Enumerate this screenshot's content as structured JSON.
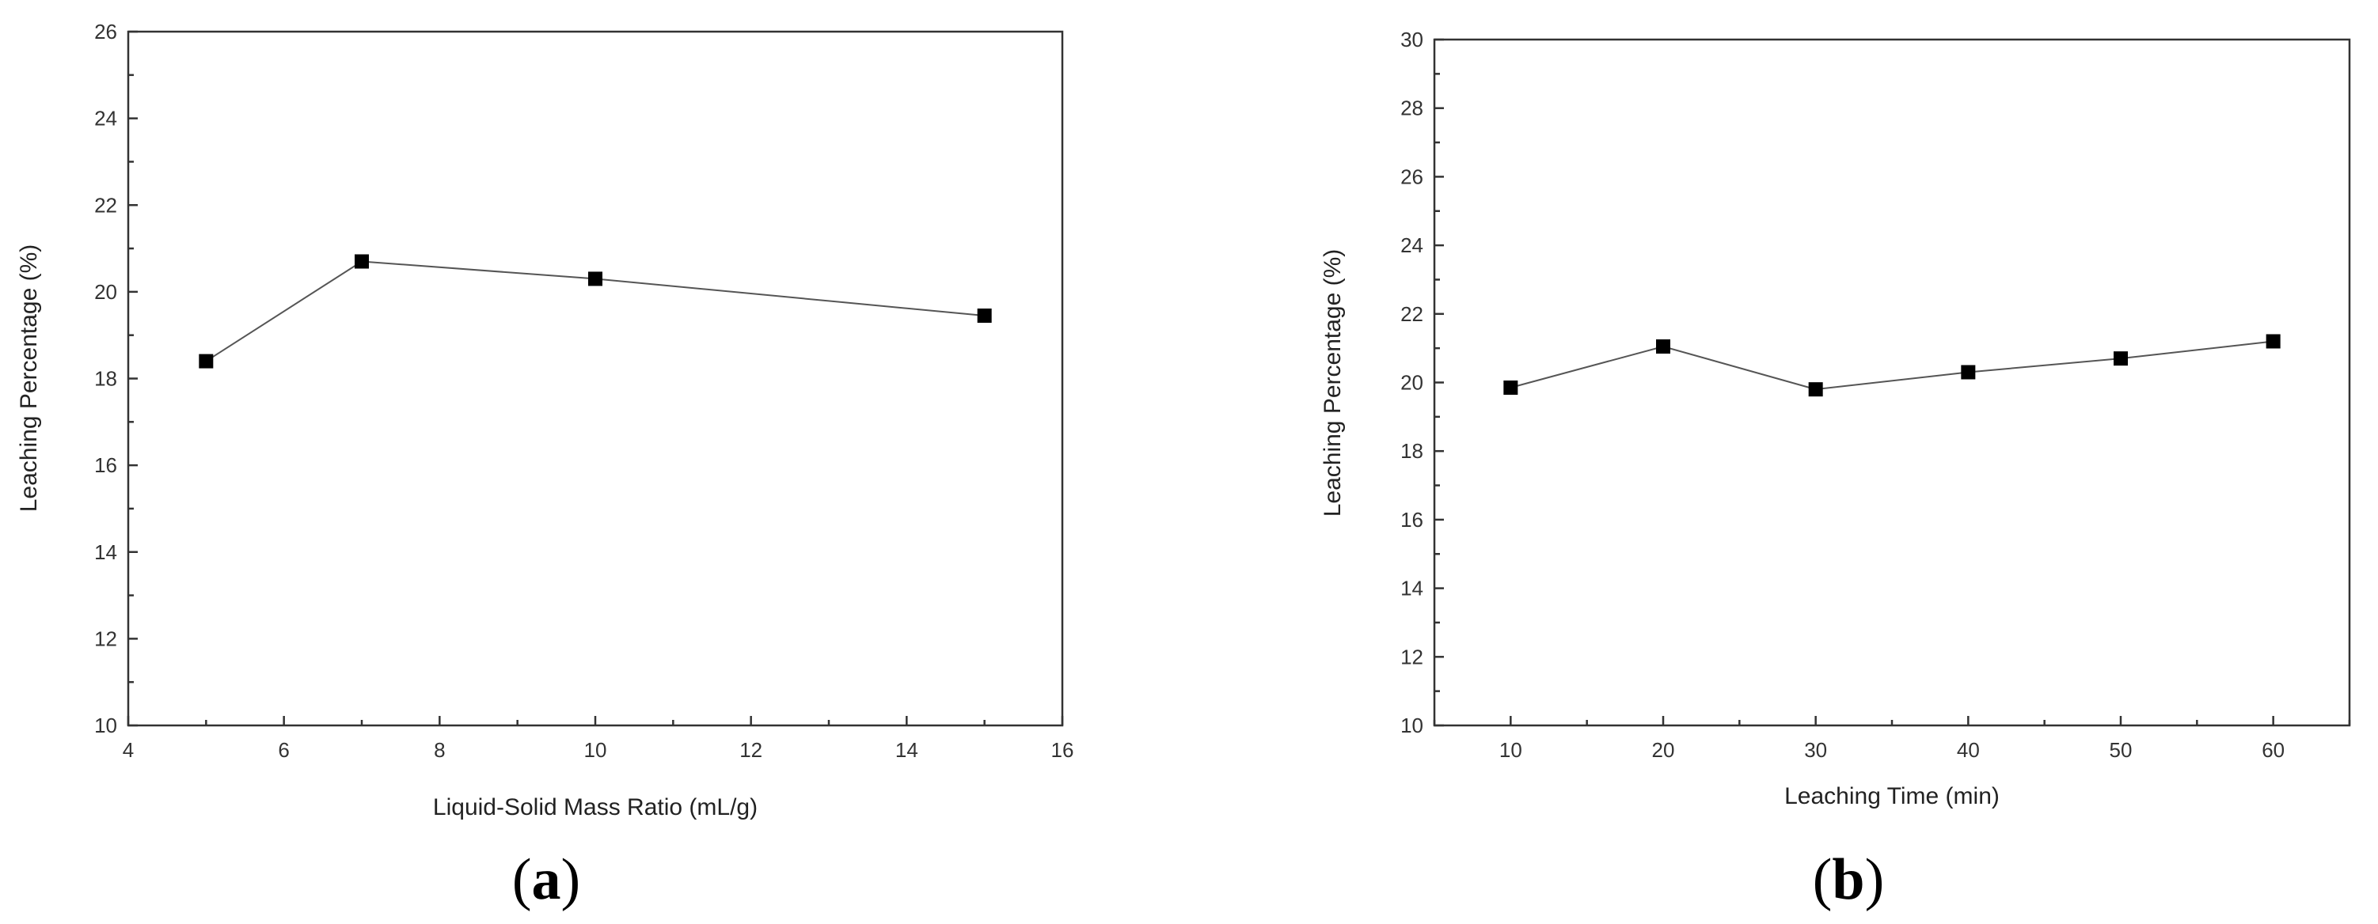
{
  "chart_data": [
    {
      "type": "line",
      "panel_label": "a",
      "xlabel": "Liquid-Solid Mass Ratio (mL/g)",
      "ylabel": "Leaching Percentage (%)",
      "xlim": [
        4,
        16
      ],
      "ylim": [
        10,
        26
      ],
      "xticks": [
        4,
        6,
        8,
        10,
        12,
        14,
        16
      ],
      "yticks": [
        10,
        12,
        14,
        16,
        18,
        20,
        22,
        24,
        26
      ],
      "x_minor_step": 1,
      "y_minor_step": 1,
      "series": [
        {
          "x": [
            5,
            7,
            10,
            15
          ],
          "y": [
            18.4,
            20.7,
            20.3,
            19.45
          ]
        }
      ],
      "marker": "square",
      "grid": false
    },
    {
      "type": "line",
      "panel_label": "b",
      "xlabel": "Leaching Time (min)",
      "ylabel": "Leaching Percentage (%)",
      "xlim": [
        5,
        65
      ],
      "ylim": [
        10,
        30
      ],
      "xticks": [
        10,
        20,
        30,
        40,
        50,
        60
      ],
      "yticks": [
        10,
        12,
        14,
        16,
        18,
        20,
        22,
        24,
        26,
        28,
        30
      ],
      "x_minor_step": 5,
      "y_minor_step": 1,
      "series": [
        {
          "x": [
            10,
            20,
            30,
            40,
            50,
            60
          ],
          "y": [
            19.85,
            21.05,
            19.8,
            20.3,
            20.7,
            21.2
          ]
        }
      ],
      "marker": "square",
      "grid": false
    }
  ]
}
